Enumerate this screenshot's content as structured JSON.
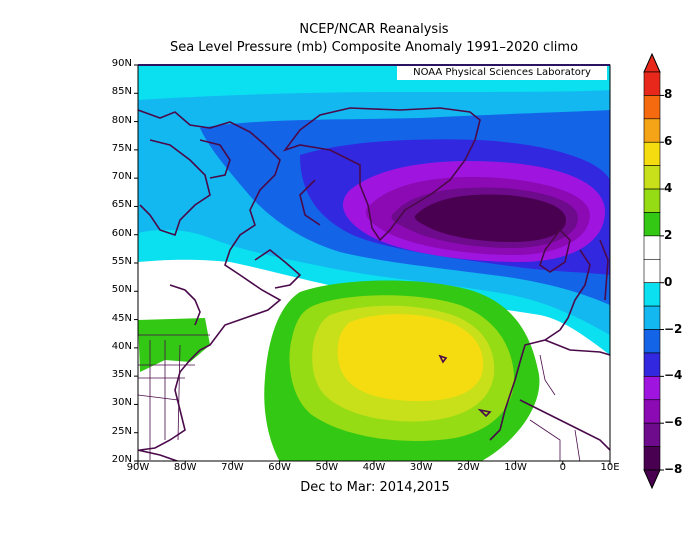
{
  "title": "NCEP/NCAR Reanalysis",
  "subtitle": "Sea Level Pressure (mb) Composite Anomaly 1991–2020 climo",
  "credit": "NOAA Physical Sciences Laboratory",
  "period": "Dec to Mar: 2014,2015",
  "lat_labels": [
    "90N",
    "85N",
    "80N",
    "75N",
    "70N",
    "65N",
    "60N",
    "55N",
    "50N",
    "45N",
    "40N",
    "35N",
    "30N",
    "25N",
    "20N"
  ],
  "lon_labels": [
    "90W",
    "80W",
    "70W",
    "60W",
    "50W",
    "40W",
    "30W",
    "20W",
    "10W",
    "0",
    "10E"
  ],
  "colorbar": {
    "labels": [
      "8",
      "6",
      "4",
      "2",
      "0",
      "−2",
      "−4",
      "−6",
      "−8"
    ],
    "colors": [
      "#e8281a",
      "#f56a0f",
      "#f5a418",
      "#f5dc10",
      "#c8e01a",
      "#96dc14",
      "#32c814",
      "#ffffff",
      "#ffffff",
      "#0ae0f0",
      "#14b8f0",
      "#1464e8",
      "#3228e0",
      "#a014e0",
      "#8c0ab4",
      "#6e0a8c",
      "#4a0050"
    ]
  },
  "map": {
    "colors": {
      "cyan_light": "#0ae0f0",
      "cyan": "#14b8f0",
      "blue": "#1464e8",
      "indigo": "#3228e0",
      "magenta": "#a014e0",
      "purple": "#8c0ab4",
      "darkpurple": "#6e0a8c",
      "deep": "#4a0050",
      "green": "#32c814",
      "lightgreen": "#96dc14",
      "yellowgreen": "#c8e01a",
      "yellow": "#f5dc10",
      "coast": "#4a0a4a"
    }
  }
}
